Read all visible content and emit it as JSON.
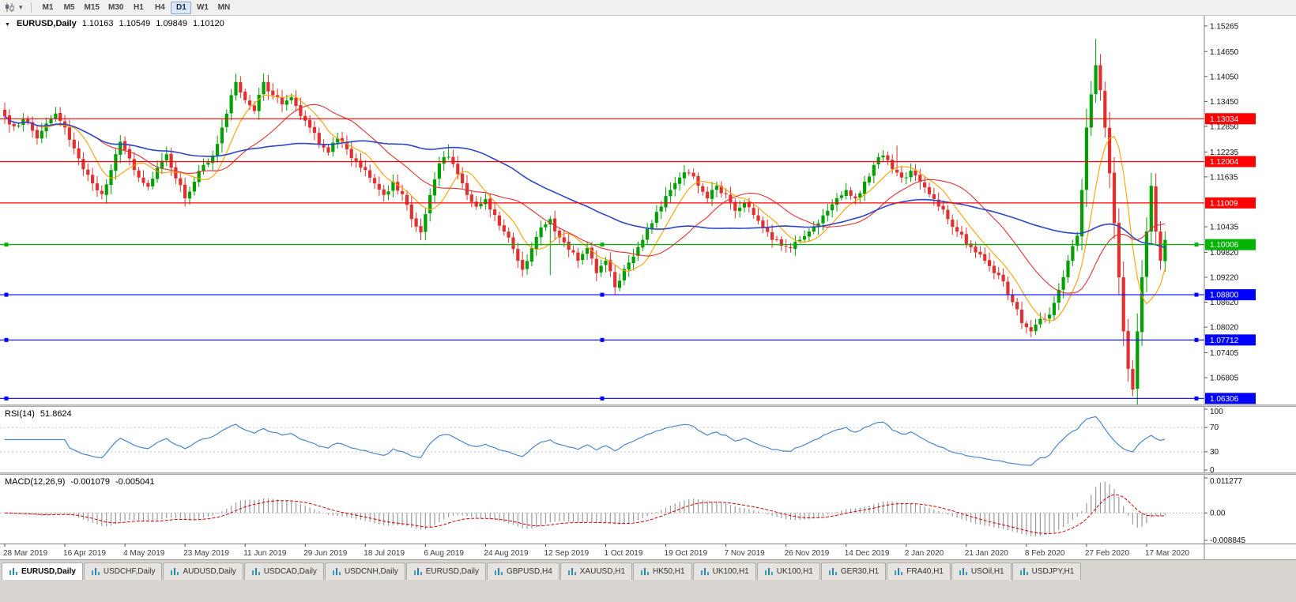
{
  "toolbar": {
    "timeframes": [
      "M1",
      "M5",
      "M15",
      "M30",
      "H1",
      "H4",
      "D1",
      "W1",
      "MN"
    ],
    "active_timeframe": "D1",
    "chart_dropdown_glyph": "▾"
  },
  "chart": {
    "collapse_icon": "▼",
    "symbol": "EURUSD,Daily",
    "ohlc": {
      "open": "1.10163",
      "high": "1.10549",
      "low": "1.09849",
      "close": "1.10120"
    },
    "y_ticks": [
      "1.15265",
      "1.14650",
      "1.14050",
      "1.13450",
      "1.12850",
      "1.12235",
      "1.11635",
      "1.10435",
      "1.09820",
      "1.09220",
      "1.08620",
      "1.08020",
      "1.07405",
      "1.06805"
    ],
    "levels": [
      {
        "label": "1.13034",
        "price": 1.13034,
        "color": "#ff0000",
        "selected": false
      },
      {
        "label": "1.12004",
        "price": 1.12004,
        "color": "#ff0000",
        "selected": false
      },
      {
        "label": "1.11009",
        "price": 1.11009,
        "color": "#ff0000",
        "selected": false
      },
      {
        "label": "1.10006",
        "price": 1.10006,
        "color": "#00b400",
        "selected": true
      },
      {
        "label": "1.08800",
        "price": 1.088,
        "color": "#0000ff",
        "selected": true
      },
      {
        "label": "1.07712",
        "price": 1.07712,
        "color": "#0000ff",
        "selected": true
      },
      {
        "label": "1.06306",
        "price": 1.06306,
        "color": "#0000ff",
        "selected": true
      }
    ]
  },
  "rsi": {
    "label": "RSI(14)",
    "value": "51.8624",
    "period": 14,
    "line_color": "#4a86c8",
    "axis": [
      "100",
      "70",
      "30",
      "0"
    ],
    "levels": [
      70,
      30
    ]
  },
  "macd": {
    "label": "MACD(12,26,9)",
    "value": "-0.001079",
    "signal_value": "-0.005041",
    "fast": 12,
    "slow": 26,
    "signal": 9,
    "hist_color": "#9a9a9a",
    "signal_color": "#d40000",
    "axis": [
      "0.011277",
      "0.00",
      "-0.008845"
    ]
  },
  "dates": [
    "28 Mar 2019",
    "16 Apr 2019",
    "4 May 2019",
    "23 May 2019",
    "11 Jun 2019",
    "29 Jun 2019",
    "18 Jul 2019",
    "6 Aug 2019",
    "24 Aug 2019",
    "12 Sep 2019",
    "1 Oct 2019",
    "19 Oct 2019",
    "7 Nov 2019",
    "26 Nov 2019",
    "14 Dec 2019",
    "2 Jan 2020",
    "21 Jan 2020",
    "8 Feb 2020",
    "27 Feb 2020",
    "17 Mar 2020"
  ],
  "tabs": {
    "active": 0,
    "items": [
      "EURUSD,Daily",
      "USDCHF,Daily",
      "AUDUSD,Daily",
      "USDCAD,Daily",
      "USDCNH,Daily",
      "EURUSD,Daily",
      "GBPUSD,H4",
      "XAUUSD,H1",
      "HK50,H1",
      "UK100,H1",
      "UK100,H1",
      "GER30,H1",
      "FRA40,H1",
      "USOil,H1",
      "USDJPY,H1"
    ]
  },
  "chart_data": {
    "type": "candlestick",
    "symbol": "EURUSD",
    "timeframe": "Daily",
    "ylim": [
      1.0616,
      1.1551
    ],
    "n_candles": 252,
    "label_step": 13,
    "seed": 7,
    "noise": 0.0016,
    "up_color": "#00a000",
    "down_color": "#e03030",
    "moving_averages": [
      {
        "period": 8,
        "color": "#ffa000"
      },
      {
        "period": 21,
        "color": "#e03030"
      },
      {
        "period": 55,
        "color": "#2e46c8"
      }
    ],
    "waypoints": [
      [
        0,
        1.131
      ],
      [
        2,
        1.1285
      ],
      [
        4,
        1.1302
      ],
      [
        7,
        1.1256
      ],
      [
        9,
        1.1292
      ],
      [
        11,
        1.1316
      ],
      [
        13,
        1.1282
      ],
      [
        15,
        1.1232
      ],
      [
        17,
        1.1182
      ],
      [
        19,
        1.1148
      ],
      [
        21,
        1.1122
      ],
      [
        23,
        1.118
      ],
      [
        25,
        1.1248
      ],
      [
        27,
        1.1208
      ],
      [
        29,
        1.1162
      ],
      [
        31,
        1.114
      ],
      [
        33,
        1.1185
      ],
      [
        35,
        1.1218
      ],
      [
        37,
        1.116
      ],
      [
        39,
        1.1112
      ],
      [
        41,
        1.1152
      ],
      [
        43,
        1.1192
      ],
      [
        45,
        1.1215
      ],
      [
        47,
        1.1282
      ],
      [
        49,
        1.136
      ],
      [
        50,
        1.1392
      ],
      [
        52,
        1.1348
      ],
      [
        54,
        1.1322
      ],
      [
        56,
        1.1392
      ],
      [
        58,
        1.136
      ],
      [
        60,
        1.1338
      ],
      [
        62,
        1.1355
      ],
      [
        64,
        1.131
      ],
      [
        66,
        1.1282
      ],
      [
        68,
        1.1242
      ],
      [
        70,
        1.1222
      ],
      [
        72,
        1.1256
      ],
      [
        74,
        1.123
      ],
      [
        76,
        1.1202
      ],
      [
        78,
        1.118
      ],
      [
        80,
        1.1148
      ],
      [
        82,
        1.112
      ],
      [
        84,
        1.1152
      ],
      [
        86,
        1.1122
      ],
      [
        88,
        1.1062
      ],
      [
        90,
        1.103
      ],
      [
        92,
        1.112
      ],
      [
        94,
        1.1196
      ],
      [
        96,
        1.1212
      ],
      [
        98,
        1.117
      ],
      [
        100,
        1.112
      ],
      [
        102,
        1.1092
      ],
      [
        104,
        1.111
      ],
      [
        106,
        1.1072
      ],
      [
        108,
        1.1032
      ],
      [
        110,
        1.099
      ],
      [
        112,
        1.094
      ],
      [
        114,
        1.0992
      ],
      [
        116,
        1.1042
      ],
      [
        118,
        1.1062
      ],
      [
        120,
        1.1018
      ],
      [
        122,
        1.0988
      ],
      [
        124,
        1.0962
      ],
      [
        126,
        1.0992
      ],
      [
        128,
        1.0932
      ],
      [
        130,
        1.0962
      ],
      [
        132,
        1.0898
      ],
      [
        134,
        1.0942
      ],
      [
        136,
        1.0972
      ],
      [
        138,
        1.1012
      ],
      [
        140,
        1.1052
      ],
      [
        142,
        1.1092
      ],
      [
        144,
        1.1132
      ],
      [
        146,
        1.1162
      ],
      [
        148,
        1.1172
      ],
      [
        150,
        1.1142
      ],
      [
        152,
        1.1112
      ],
      [
        154,
        1.1142
      ],
      [
        156,
        1.1122
      ],
      [
        158,
        1.1082
      ],
      [
        160,
        1.1102
      ],
      [
        162,
        1.1072
      ],
      [
        164,
        1.1042
      ],
      [
        166,
        1.1012
      ],
      [
        168,
        1.0998
      ],
      [
        170,
        1.0992
      ],
      [
        172,
        1.1012
      ],
      [
        174,
        1.1032
      ],
      [
        176,
        1.1052
      ],
      [
        178,
        1.1082
      ],
      [
        180,
        1.1112
      ],
      [
        182,
        1.1132
      ],
      [
        184,
        1.1112
      ],
      [
        186,
        1.1152
      ],
      [
        188,
        1.1192
      ],
      [
        190,
        1.1215
      ],
      [
        192,
        1.1182
      ],
      [
        194,
        1.1162
      ],
      [
        196,
        1.1178
      ],
      [
        198,
        1.1152
      ],
      [
        200,
        1.1122
      ],
      [
        202,
        1.1092
      ],
      [
        204,
        1.1062
      ],
      [
        206,
        1.1032
      ],
      [
        208,
        1.1002
      ],
      [
        210,
        1.0982
      ],
      [
        212,
        1.0962
      ],
      [
        214,
        1.0932
      ],
      [
        216,
        1.0912
      ],
      [
        218,
        1.0862
      ],
      [
        220,
        1.0812
      ],
      [
        222,
        1.0792
      ],
      [
        224,
        1.0822
      ],
      [
        226,
        1.0832
      ],
      [
        228,
        1.0892
      ],
      [
        230,
        1.0962
      ],
      [
        232,
        1.1022
      ],
      [
        233,
        1.1132
      ],
      [
        234,
        1.1282
      ],
      [
        235,
        1.1362
      ],
      [
        236,
        1.1432
      ],
      [
        237,
        1.1372
      ],
      [
        238,
        1.1282
      ],
      [
        239,
        1.1172
      ],
      [
        240,
        1.1052
      ],
      [
        241,
        1.0922
      ],
      [
        242,
        1.0792
      ],
      [
        243,
        1.0702
      ],
      [
        244,
        1.0652
      ],
      [
        245,
        1.0792
      ],
      [
        246,
        1.0922
      ],
      [
        247,
        1.1032
      ],
      [
        248,
        1.1142
      ],
      [
        249,
        1.1032
      ],
      [
        250,
        1.0962
      ],
      [
        251,
        1.1012
      ]
    ],
    "wick_overrides": {
      "high": {
        "11": 1.1332,
        "50": 1.1412,
        "56": 1.14,
        "96": 1.1242,
        "193": 1.1239,
        "236": 1.1495,
        "248": 1.1147
      },
      "low": {
        "21": 1.111,
        "39": 1.1107,
        "90": 1.1026,
        "112": 1.0926,
        "118": 1.0927,
        "132": 1.0879,
        "222": 1.0778,
        "244": 1.0636,
        "250": 1.095
      }
    }
  }
}
